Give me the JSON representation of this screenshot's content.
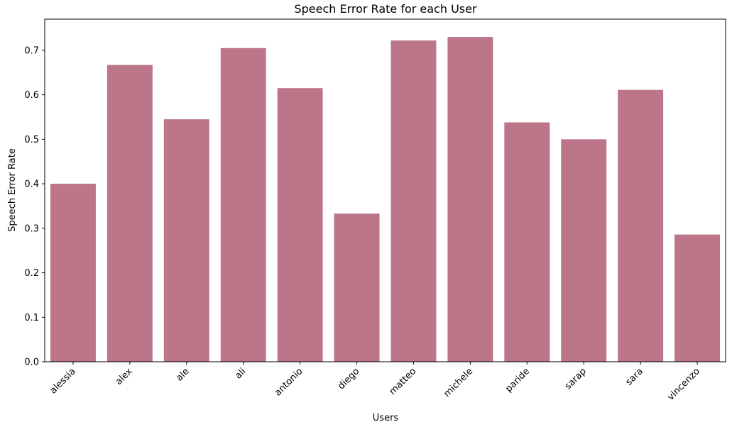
{
  "chart_data": {
    "type": "bar",
    "title": "Speech Error Rate for each User",
    "xlabel": "Users",
    "ylabel": "Speech Error Rate",
    "categories": [
      "alessia",
      "alex",
      "ale",
      "ali",
      "antonio",
      "diego",
      "matteo",
      "michele",
      "paride",
      "sarap",
      "sara",
      "vincenzo"
    ],
    "values": [
      0.4,
      0.667,
      0.545,
      0.705,
      0.615,
      0.333,
      0.722,
      0.73,
      0.538,
      0.5,
      0.611,
      0.286
    ],
    "ylim": [
      0,
      0.77
    ],
    "yticks": [
      0.0,
      0.1,
      0.2,
      0.3,
      0.4,
      0.5,
      0.6,
      0.7
    ],
    "ytick_labels": [
      "0.0",
      "0.1",
      "0.2",
      "0.3",
      "0.4",
      "0.5",
      "0.6",
      "0.7"
    ],
    "bar_color": "#bc7589",
    "grid": false,
    "legend": "none"
  }
}
